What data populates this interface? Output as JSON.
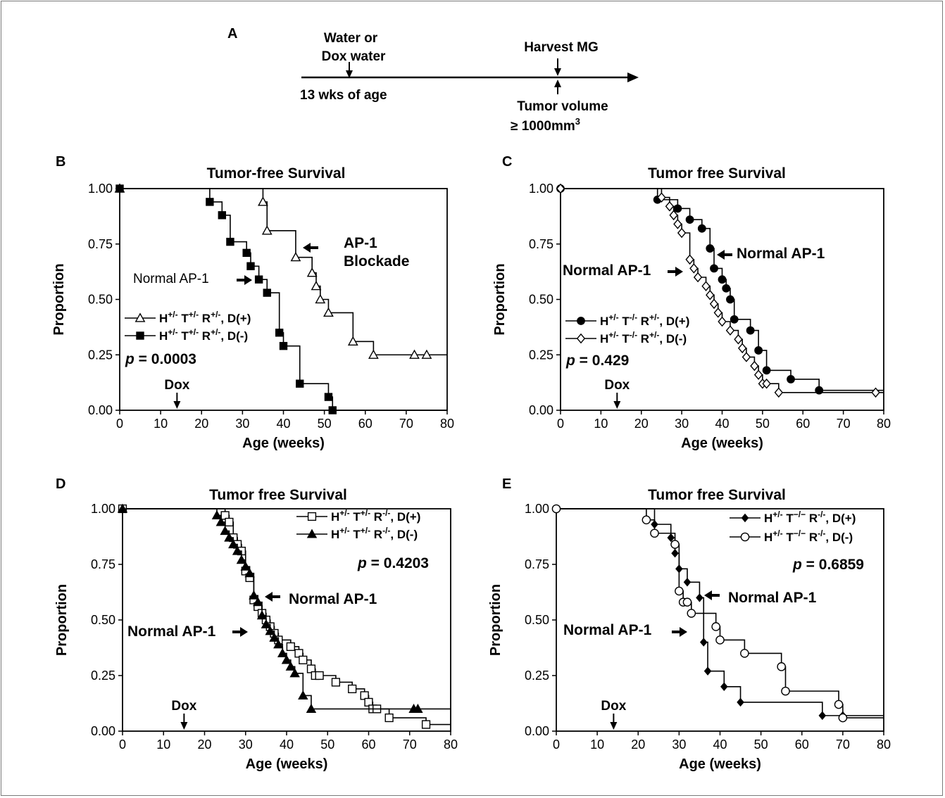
{
  "timeline": {
    "panel_label": "A",
    "water_line1": "Water or",
    "water_line2": "Dox water",
    "age_label": "13 wks of age",
    "harvest_label": "Harvest MG",
    "tumor_line1": "Tumor volume",
    "tumor_line2": "≥ 1000mm",
    "tumor_sup": "3"
  },
  "chart_data": [
    {
      "panel": "B",
      "type": "line",
      "title": "Tumor-free Survival",
      "xlabel": "Age (weeks)",
      "ylabel": "Proportion",
      "xlim": [
        0,
        80
      ],
      "ylim": [
        0,
        1
      ],
      "xticks": [
        "0",
        "10",
        "20",
        "30",
        "40",
        "50",
        "60",
        "70",
        "80"
      ],
      "yticks": [
        "0.00",
        "0.25",
        "0.50",
        "0.75",
        "1.00"
      ],
      "pvalue_label": "p",
      "pvalue": "= 0.0003",
      "dox_label": "Dox",
      "dox_x": 14,
      "legend_position": "middle-left",
      "series": [
        {
          "name_parts": [
            "H",
            "+/-",
            " T",
            "+/-",
            " R",
            "+/-",
            ", D(+)"
          ],
          "marker": "open-triangle",
          "x": [
            0,
            35,
            36,
            43,
            47,
            48,
            49,
            51,
            57,
            62,
            72,
            75,
            80
          ],
          "y": [
            1.0,
            0.94,
            0.81,
            0.69,
            0.62,
            0.56,
            0.5,
            0.44,
            0.31,
            0.25,
            0.25,
            0.25,
            0.25
          ]
        },
        {
          "name_parts": [
            "H",
            "+/-",
            " T",
            "+/-",
            " R",
            "+/-",
            ", D(-)"
          ],
          "marker": "filled-square",
          "x": [
            0,
            22,
            25,
            27,
            31,
            32,
            34,
            36,
            39,
            40,
            44,
            51,
            52
          ],
          "y": [
            1.0,
            0.94,
            0.88,
            0.76,
            0.71,
            0.65,
            0.59,
            0.53,
            0.35,
            0.29,
            0.12,
            0.06,
            0.0
          ]
        }
      ],
      "annotations": [
        {
          "text": [
            "AP-1",
            "Blockade"
          ],
          "x": 43,
          "y": 0.73,
          "bold": true
        },
        {
          "text": [
            "Normal AP-1"
          ],
          "x": 33,
          "y": 0.59,
          "bold": false
        }
      ]
    },
    {
      "panel": "C",
      "type": "line",
      "title": "Tumor free Survival",
      "xlabel": "Age (weeks)",
      "ylabel": "Proportion",
      "xlim": [
        0,
        80
      ],
      "ylim": [
        0,
        1
      ],
      "xticks": [
        "0",
        "10",
        "20",
        "30",
        "40",
        "50",
        "60",
        "70",
        "80"
      ],
      "yticks": [
        "0.00",
        "0.25",
        "0.50",
        "0.75",
        "1.00"
      ],
      "pvalue_label": "p",
      "pvalue": "= 0.429",
      "dox_label": "Dox",
      "dox_x": 14,
      "legend_position": "middle-left",
      "series": [
        {
          "name_parts": [
            "H",
            "+/-",
            " T",
            "-/-",
            " R",
            "+/-",
            ", D(+)"
          ],
          "marker": "filled-circle",
          "x": [
            0,
            24,
            29,
            32,
            35,
            37,
            38,
            40,
            41,
            42,
            43,
            47,
            49,
            51,
            57,
            64
          ],
          "y": [
            1.0,
            0.95,
            0.91,
            0.86,
            0.82,
            0.73,
            0.64,
            0.59,
            0.55,
            0.5,
            0.41,
            0.36,
            0.27,
            0.18,
            0.14,
            0.09
          ]
        },
        {
          "name_parts": [
            "H",
            "+/-",
            " T",
            "-/-",
            " R",
            "+/-",
            ", D(-)"
          ],
          "marker": "open-diamond",
          "x": [
            0,
            25,
            27,
            28,
            29,
            30,
            32,
            33,
            34,
            36,
            37,
            38,
            39,
            40,
            42,
            44,
            45,
            46,
            48,
            49,
            50,
            51,
            54,
            78
          ],
          "y": [
            1.0,
            0.96,
            0.92,
            0.88,
            0.84,
            0.8,
            0.68,
            0.64,
            0.6,
            0.56,
            0.52,
            0.48,
            0.44,
            0.4,
            0.36,
            0.32,
            0.28,
            0.24,
            0.2,
            0.16,
            0.12,
            0.12,
            0.08,
            0.08
          ]
        }
      ],
      "annotations": [
        {
          "text": [
            "Normal AP-1"
          ],
          "x": 38,
          "y": 0.71,
          "bold": true
        },
        {
          "text": [
            "Normal AP-1"
          ],
          "x": 31,
          "y": 0.63,
          "bold": true
        }
      ]
    },
    {
      "panel": "D",
      "type": "line",
      "title": "Tumor free Survival",
      "xlabel": "Age (weeks)",
      "ylabel": "Proportion",
      "xlim": [
        0,
        80
      ],
      "ylim": [
        0,
        1
      ],
      "xticks": [
        "0",
        "10",
        "20",
        "30",
        "40",
        "50",
        "60",
        "70",
        "80"
      ],
      "yticks": [
        "0.00",
        "0.25",
        "0.50",
        "0.75",
        "1.00"
      ],
      "pvalue_label": "p",
      "pvalue": "= 0.4203",
      "dox_label": "Dox",
      "dox_x": 15,
      "legend_position": "top-right",
      "series": [
        {
          "name_parts": [
            "H",
            "+/-",
            " T",
            "+/-",
            " R",
            "-/-",
            ", D(+)"
          ],
          "marker": "open-square",
          "x": [
            0,
            25,
            26,
            27,
            28,
            29,
            30,
            31,
            32,
            33,
            34,
            35,
            36,
            37,
            38,
            41,
            43,
            44,
            46,
            47,
            48,
            52,
            56,
            59,
            60,
            61,
            62,
            65,
            74
          ],
          "y": [
            1.0,
            0.97,
            0.94,
            0.87,
            0.84,
            0.81,
            0.72,
            0.69,
            0.59,
            0.56,
            0.53,
            0.5,
            0.47,
            0.44,
            0.41,
            0.38,
            0.35,
            0.32,
            0.28,
            0.25,
            0.25,
            0.22,
            0.19,
            0.16,
            0.13,
            0.1,
            0.1,
            0.06,
            0.03
          ]
        },
        {
          "name_parts": [
            "H",
            "+/-",
            " T",
            "+/-",
            " R",
            "-/-",
            ", D(-)"
          ],
          "marker": "filled-triangle",
          "x": [
            0,
            23,
            24,
            25,
            26,
            27,
            28,
            29,
            30,
            31,
            32,
            33,
            34,
            35,
            36,
            37,
            38,
            39,
            40,
            41,
            42,
            44,
            46,
            71,
            72
          ],
          "y": [
            1.0,
            0.97,
            0.94,
            0.9,
            0.87,
            0.84,
            0.81,
            0.77,
            0.74,
            0.71,
            0.61,
            0.58,
            0.52,
            0.48,
            0.45,
            0.42,
            0.39,
            0.35,
            0.32,
            0.29,
            0.26,
            0.16,
            0.1,
            0.1,
            0.1
          ]
        }
      ],
      "annotations": [
        {
          "text": [
            "Normal AP-1"
          ],
          "x": 35,
          "y": 0.61,
          "bold": true
        },
        {
          "text": [
            "Normal AP-1"
          ],
          "x": 31,
          "y": 0.45,
          "bold": true
        }
      ]
    },
    {
      "panel": "E",
      "type": "line",
      "title": "Tumor free Survival",
      "xlabel": "Age (weeks)",
      "ylabel": "Proportion",
      "xlim": [
        0,
        80
      ],
      "ylim": [
        0,
        1
      ],
      "xticks": [
        "0",
        "10",
        "20",
        "30",
        "40",
        "50",
        "60",
        "70",
        "80"
      ],
      "yticks": [
        "0.00",
        "0.25",
        "0.50",
        "0.75",
        "1.00"
      ],
      "pvalue_label": "p",
      "pvalue": "= 0.6859",
      "dox_label": "Dox",
      "dox_x": 14,
      "legend_position": "top-right",
      "series": [
        {
          "name_parts": [
            "H",
            "+/-",
            " T",
            "−/−",
            " R",
            "-/-",
            ", D(+)"
          ],
          "marker": "filled-diamond",
          "x": [
            0,
            24,
            28,
            29,
            30,
            32,
            35,
            36,
            37,
            41,
            45,
            65,
            70
          ],
          "y": [
            1.0,
            0.93,
            0.87,
            0.8,
            0.73,
            0.67,
            0.6,
            0.4,
            0.27,
            0.2,
            0.13,
            0.07,
            0.07
          ]
        },
        {
          "name_parts": [
            "H",
            "+/-",
            " T",
            "−/−",
            " R",
            "-/-",
            ", D(-)"
          ],
          "marker": "open-circle",
          "x": [
            0,
            22,
            24,
            29,
            30,
            31,
            32,
            33,
            39,
            40,
            46,
            55,
            56,
            69,
            70
          ],
          "y": [
            1.0,
            0.95,
            0.89,
            0.84,
            0.63,
            0.58,
            0.58,
            0.53,
            0.47,
            0.41,
            0.35,
            0.29,
            0.18,
            0.12,
            0.06
          ]
        }
      ],
      "annotations": [
        {
          "text": [
            "Normal AP-1"
          ],
          "x": 36,
          "y": 0.61,
          "bold": true
        },
        {
          "text": [
            "Normal AP-1"
          ],
          "x": 30,
          "y": 0.45,
          "bold": true
        }
      ]
    }
  ]
}
